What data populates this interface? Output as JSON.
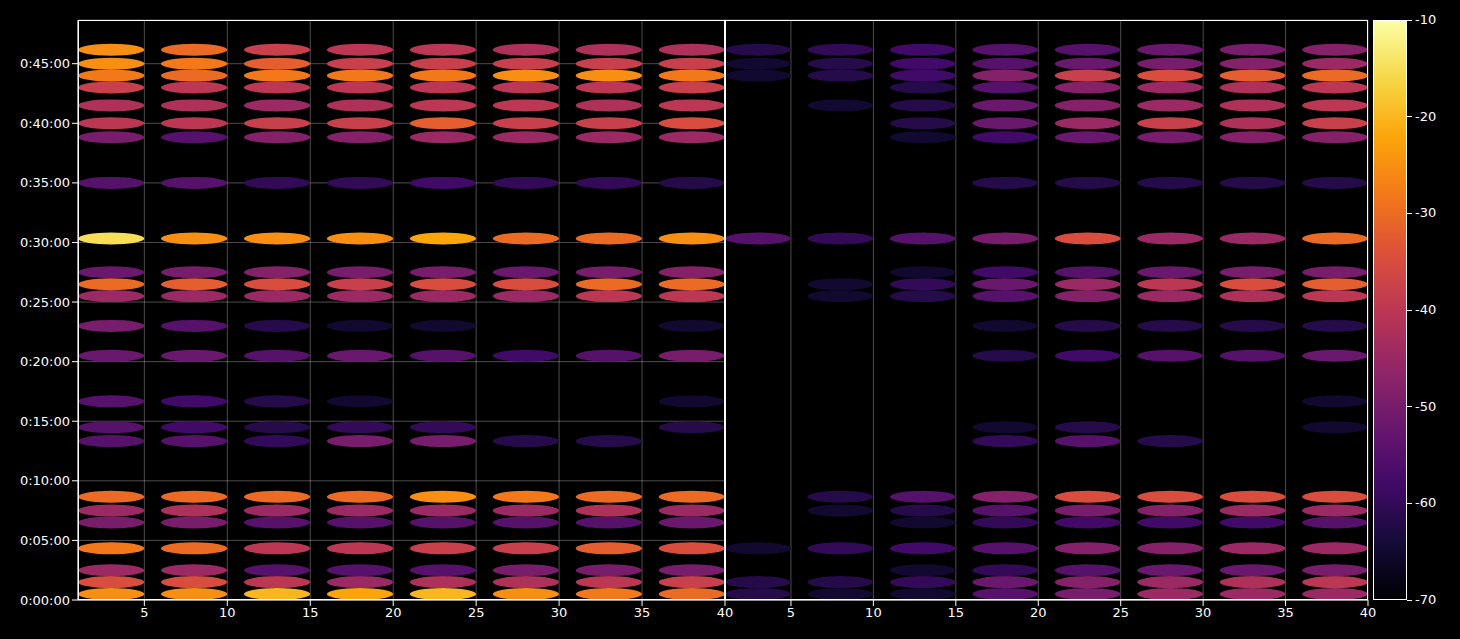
{
  "chart_data": [
    {
      "type": "heatmap",
      "grid": true,
      "tick_labels": true,
      "xlim": [
        1,
        40
      ],
      "xticks": [
        5,
        10,
        15,
        20,
        25,
        30,
        35,
        40
      ],
      "ylim": [
        0,
        2920
      ],
      "yticks": [
        {
          "value": 0,
          "label": "0:00:00"
        },
        {
          "value": 300,
          "label": "0:05:00"
        },
        {
          "value": 600,
          "label": "0:10:00"
        },
        {
          "value": 900,
          "label": "0:15:00"
        },
        {
          "value": 1200,
          "label": "0:20:00"
        },
        {
          "value": 1500,
          "label": "0:25:00"
        },
        {
          "value": 1800,
          "label": "0:30:00"
        },
        {
          "value": 2100,
          "label": "0:35:00"
        },
        {
          "value": 2400,
          "label": "0:40:00"
        },
        {
          "value": 2700,
          "label": "0:45:00"
        }
      ],
      "x": [
        3,
        8,
        13,
        18,
        23,
        28,
        33,
        38
      ],
      "y": [
        30,
        90,
        150,
        260,
        390,
        450,
        520,
        800,
        870,
        1000,
        1230,
        1380,
        1530,
        1590,
        1650,
        1820,
        2100,
        2330,
        2400,
        2490,
        2580,
        2640,
        2700,
        2770
      ],
      "cells": [
        [
          -25,
          -25,
          -20,
          -22,
          -20,
          -25,
          -28,
          -30
        ],
        [
          -35,
          -35,
          -40,
          -45,
          -42,
          -42,
          -40,
          -38
        ],
        [
          -45,
          -45,
          -55,
          -55,
          -55,
          -50,
          -50,
          -50
        ],
        [
          -28,
          -30,
          -40,
          -40,
          -38,
          -38,
          -32,
          -35
        ],
        [
          -50,
          -50,
          -55,
          -55,
          -55,
          -55,
          -55,
          -52
        ],
        [
          -45,
          -42,
          -45,
          -45,
          -45,
          -45,
          -42,
          -45
        ],
        [
          -30,
          -30,
          -30,
          -30,
          -25,
          -28,
          -30,
          -30
        ],
        [
          -55,
          -55,
          -60,
          -50,
          -50,
          -62,
          -62,
          null
        ],
        [
          -55,
          -58,
          -62,
          -60,
          -60,
          null,
          null,
          -62
        ],
        [
          -55,
          -58,
          -62,
          -65,
          null,
          null,
          null,
          -65
        ],
        [
          -52,
          -52,
          -55,
          -52,
          -55,
          -58,
          -55,
          -50
        ],
        [
          -50,
          -55,
          -62,
          -65,
          -65,
          null,
          null,
          -65
        ],
        [
          -45,
          -45,
          -45,
          -45,
          -45,
          -45,
          -40,
          -40
        ],
        [
          -30,
          -32,
          -35,
          -38,
          -35,
          -35,
          -30,
          -30
        ],
        [
          -52,
          -50,
          -48,
          -50,
          -50,
          -52,
          -50,
          -48
        ],
        [
          -15,
          -25,
          -25,
          -25,
          -22,
          -30,
          -30,
          -25
        ],
        [
          -55,
          -55,
          -60,
          -60,
          -58,
          -60,
          -60,
          -62
        ],
        [
          -50,
          -55,
          -48,
          -48,
          -45,
          -45,
          -45,
          -45
        ],
        [
          -40,
          -40,
          -38,
          -38,
          -32,
          -38,
          -38,
          -35
        ],
        [
          -42,
          -42,
          -45,
          -42,
          -40,
          -40,
          -42,
          -40
        ],
        [
          -38,
          -40,
          -40,
          -40,
          -40,
          -40,
          -40,
          -38
        ],
        [
          -28,
          -30,
          -28,
          -28,
          -28,
          -25,
          -25,
          -28
        ],
        [
          -25,
          -28,
          -32,
          -38,
          -38,
          -38,
          -38,
          -38
        ],
        [
          -25,
          -30,
          -38,
          -40,
          -40,
          -42,
          -42,
          -42
        ]
      ]
    },
    {
      "type": "heatmap",
      "grid": true,
      "tick_labels": "x",
      "xlim": [
        1,
        40
      ],
      "xticks": [
        5,
        10,
        15,
        20,
        25,
        30,
        35,
        40
      ],
      "ylim": [
        0,
        2920
      ],
      "yticks": [
        {
          "value": 0,
          "label": "0:00:00"
        },
        {
          "value": 300,
          "label": "0:05:00"
        },
        {
          "value": 600,
          "label": "0:10:00"
        },
        {
          "value": 900,
          "label": "0:15:00"
        },
        {
          "value": 1200,
          "label": "0:20:00"
        },
        {
          "value": 1500,
          "label": "0:25:00"
        },
        {
          "value": 1800,
          "label": "0:30:00"
        },
        {
          "value": 2100,
          "label": "0:35:00"
        },
        {
          "value": 2400,
          "label": "0:40:00"
        },
        {
          "value": 2700,
          "label": "0:45:00"
        }
      ],
      "x": [
        3,
        8,
        13,
        18,
        23,
        28,
        33,
        38
      ],
      "y": [
        30,
        90,
        150,
        260,
        390,
        450,
        520,
        800,
        870,
        1000,
        1230,
        1380,
        1530,
        1590,
        1650,
        1820,
        2100,
        2330,
        2400,
        2490,
        2580,
        2640,
        2700,
        2770
      ],
      "cells": [
        [
          -62,
          -65,
          -65,
          -55,
          -50,
          -45,
          -45,
          -45
        ],
        [
          -62,
          -62,
          -60,
          -52,
          -48,
          -45,
          -42,
          -40
        ],
        [
          null,
          null,
          -65,
          -60,
          -55,
          -52,
          -52,
          -50
        ],
        [
          -65,
          -60,
          -58,
          -55,
          -48,
          -48,
          -45,
          -45
        ],
        [
          null,
          null,
          -65,
          -60,
          -58,
          -58,
          -58,
          -55
        ],
        [
          null,
          -65,
          -62,
          -55,
          -50,
          -48,
          -45,
          -45
        ],
        [
          null,
          -62,
          -55,
          -48,
          -35,
          -35,
          -35,
          -35
        ],
        [
          null,
          null,
          null,
          -60,
          -55,
          -62,
          null,
          null
        ],
        [
          null,
          null,
          null,
          -65,
          -62,
          null,
          null,
          -65
        ],
        [
          null,
          null,
          null,
          null,
          null,
          null,
          null,
          -65
        ],
        [
          null,
          null,
          null,
          -62,
          -58,
          -55,
          -55,
          -52
        ],
        [
          null,
          null,
          null,
          -65,
          -62,
          -62,
          -62,
          -62
        ],
        [
          null,
          -65,
          -62,
          -55,
          -48,
          -45,
          -42,
          -40
        ],
        [
          null,
          -65,
          -60,
          -52,
          -45,
          -40,
          -35,
          -32
        ],
        [
          null,
          null,
          -65,
          -58,
          -55,
          -52,
          -50,
          -50
        ],
        [
          -55,
          -60,
          -55,
          -50,
          -35,
          -45,
          -45,
          -30
        ],
        [
          null,
          null,
          null,
          -62,
          -62,
          -62,
          -62,
          -62
        ],
        [
          null,
          null,
          -65,
          -58,
          -52,
          -50,
          -48,
          -48
        ],
        [
          null,
          null,
          -62,
          -52,
          -45,
          -38,
          -42,
          -38
        ],
        [
          null,
          -65,
          -62,
          -52,
          -48,
          -45,
          -42,
          -40
        ],
        [
          null,
          null,
          -62,
          -55,
          -48,
          -45,
          -42,
          -40
        ],
        [
          -65,
          -62,
          -58,
          -48,
          -38,
          -35,
          -32,
          -30
        ],
        [
          -65,
          -62,
          -58,
          -55,
          -52,
          -50,
          -48,
          -45
        ],
        [
          -62,
          -60,
          -58,
          -55,
          -55,
          -52,
          -50,
          -48
        ]
      ],
      "colorbar_range": [
        -70,
        -10
      ],
      "colorbar_ticks": [
        -70,
        -60,
        -50,
        -40,
        -30,
        -20,
        -10
      ]
    }
  ]
}
